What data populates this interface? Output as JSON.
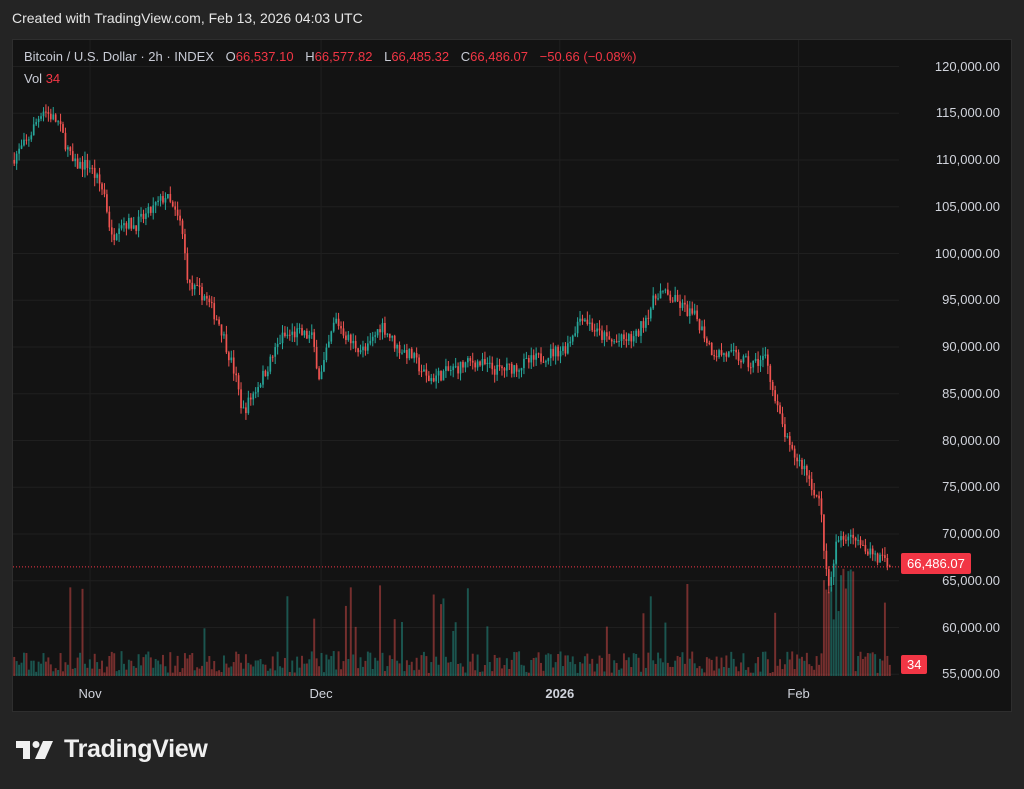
{
  "header": {
    "created_text": "Created with TradingView.com, Feb 13, 2026 04:03 UTC"
  },
  "legend": {
    "symbol": "Bitcoin / U.S. Dollar · 2h · INDEX",
    "open_label": "O",
    "open": "66,537.10",
    "high_label": "H",
    "high": "66,577.82",
    "low_label": "L",
    "low": "66,485.32",
    "close_label": "C",
    "close": "66,486.07",
    "change": "−50.66 (−0.08%)",
    "vol_label": "Vol",
    "vol": "34"
  },
  "price_tag": "66,486.07",
  "volume_tag": "34",
  "brand": {
    "name": "TradingView"
  },
  "colors": {
    "up": "#26a69a",
    "down": "#ef5350",
    "accent": "#f23645",
    "background": "#131313"
  },
  "chart_data": {
    "type": "candlestick",
    "title": "Bitcoin / U.S. Dollar",
    "interval": "2h",
    "ylim": [
      55000,
      122000
    ],
    "y_ticks": [
      "120,000.00",
      "115,000.00",
      "110,000.00",
      "105,000.00",
      "100,000.00",
      "95,000.00",
      "90,000.00",
      "85,000.00",
      "80,000.00",
      "75,000.00",
      "70,000.00",
      "65,000.00",
      "60,000.00",
      "55,000.00"
    ],
    "x_ticks": [
      {
        "label": "Nov",
        "bold": false
      },
      {
        "label": "Dec",
        "bold": false
      },
      {
        "label": "2026",
        "bold": true
      },
      {
        "label": "Feb",
        "bold": false
      }
    ],
    "last_price": 66486.07,
    "price_path": [
      [
        "Oct 22",
        110000
      ],
      [
        "Oct 24",
        112000
      ],
      [
        "Oct 26",
        115500
      ],
      [
        "Oct 28",
        114000
      ],
      [
        "Oct 30",
        109500
      ],
      [
        "Nov 1",
        109500
      ],
      [
        "Nov 3",
        106500
      ],
      [
        "Nov 4",
        101500
      ],
      [
        "Nov 5",
        103500
      ],
      [
        "Nov 7",
        103000
      ],
      [
        "Nov 9",
        104500
      ],
      [
        "Nov 11",
        106200
      ],
      [
        "Nov 13",
        103000
      ],
      [
        "Nov 14",
        96500
      ],
      [
        "Nov 16",
        95500
      ],
      [
        "Nov 18",
        92500
      ],
      [
        "Nov 20",
        87000
      ],
      [
        "Nov 21",
        83000
      ],
      [
        "Nov 22",
        84500
      ],
      [
        "Nov 24",
        87500
      ],
      [
        "Nov 26",
        91000
      ],
      [
        "Nov 28",
        91500
      ],
      [
        "Nov 30",
        91000
      ],
      [
        "Dec 1",
        86500
      ],
      [
        "Dec 3",
        93000
      ],
      [
        "Dec 5",
        90500
      ],
      [
        "Dec 7",
        89500
      ],
      [
        "Dec 9",
        92500
      ],
      [
        "Dec 11",
        90000
      ],
      [
        "Dec 13",
        89000
      ],
      [
        "Dec 15",
        86500
      ],
      [
        "Dec 18",
        87500
      ],
      [
        "Dec 21",
        88500
      ],
      [
        "Dec 24",
        87500
      ],
      [
        "Dec 27",
        88000
      ],
      [
        "Dec 30",
        89000
      ],
      [
        "Jan 2",
        90000
      ],
      [
        "Jan 4",
        93500
      ],
      [
        "Jan 6",
        91500
      ],
      [
        "Jan 8",
        90500
      ],
      [
        "Jan 11",
        91000
      ],
      [
        "Jan 14",
        96000
      ],
      [
        "Jan 16",
        95000
      ],
      [
        "Jan 19",
        93000
      ],
      [
        "Jan 21",
        89500
      ],
      [
        "Jan 24",
        89000
      ],
      [
        "Jan 26",
        88000
      ],
      [
        "Jan 28",
        89000
      ],
      [
        "Jan 29",
        84500
      ],
      [
        "Jan 31",
        79000
      ],
      [
        "Feb 2",
        77000
      ],
      [
        "Feb 4",
        73000
      ],
      [
        "Feb 5",
        63500
      ],
      [
        "Feb 6",
        69000
      ],
      [
        "Feb 8",
        70500
      ],
      [
        "Feb 10",
        68500
      ],
      [
        "Feb 13",
        66486
      ]
    ]
  }
}
